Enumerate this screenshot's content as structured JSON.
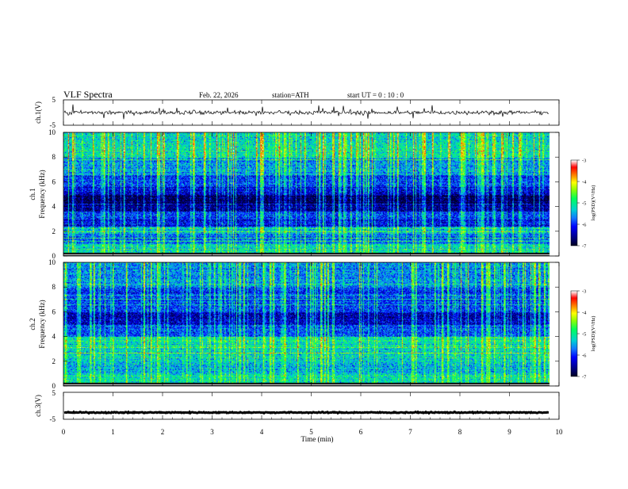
{
  "header": {
    "title": "VLF  Spectra",
    "date": "Feb. 22, 2026",
    "station": "station=ATH",
    "start": "start  UT  =    0  : 10 : 0"
  },
  "colors": {
    "palette": [
      "#000033",
      "#00008f",
      "#0000ff",
      "#1e90ff",
      "#00cccc",
      "#00ff66",
      "#66ff33",
      "#ccff00",
      "#ffff00",
      "#ff8800",
      "#ff0000",
      "#ffffff"
    ],
    "trace": "#000000",
    "axis": "#000000"
  },
  "chart_data": [
    {
      "type": "line",
      "name": "ch1-waveform",
      "ylabel": "ch.1(V)",
      "ylim": [
        -5,
        5
      ],
      "yticks": [
        "5",
        "-5"
      ],
      "xlim": [
        0,
        10
      ],
      "description_values": {
        "baseline": 0,
        "noise_amplitude": 0.8,
        "spike_amplitude": 3
      }
    },
    {
      "type": "heatmap",
      "name": "ch1-spectrogram",
      "ylabel": "ch.1\nFrequency  (kHz)",
      "ylim": [
        0,
        10
      ],
      "yticks": [
        "0",
        "2",
        "4",
        "6",
        "8",
        "10"
      ],
      "xlim": [
        0,
        10
      ],
      "data_end_min": 9.8,
      "colorbar": {
        "label": "log(PSD)(V²/Hz)",
        "ticks": [
          "-3",
          "-4",
          "-5",
          "-6",
          "-7"
        ],
        "range": [
          -7,
          -3
        ]
      },
      "bands": [
        [
          0,
          1.0,
          -5.3
        ],
        [
          1.0,
          1.8,
          -5.8
        ],
        [
          1.8,
          2.4,
          -5.4
        ],
        [
          2.4,
          3.0,
          -6.2
        ],
        [
          3.0,
          3.6,
          -6.0
        ],
        [
          3.6,
          4.2,
          -6.6
        ],
        [
          4.2,
          5.0,
          -6.8
        ],
        [
          5.0,
          5.6,
          -6.3
        ],
        [
          5.6,
          6.6,
          -5.9
        ],
        [
          6.6,
          8.0,
          -5.6
        ],
        [
          8.0,
          10.0,
          -5.2
        ]
      ]
    },
    {
      "type": "heatmap",
      "name": "ch2-spectrogram",
      "ylabel": "ch.2\nFrequency  (kHz)",
      "ylim": [
        0,
        10
      ],
      "yticks": [
        "0",
        "2",
        "4",
        "6",
        "8",
        "10"
      ],
      "xlim": [
        0,
        10
      ],
      "data_end_min": 9.8,
      "colorbar": {
        "label": "log(PSD)(V²/Hz)",
        "ticks": [
          "-3",
          "-4",
          "-5",
          "-6",
          "-7"
        ],
        "range": [
          -7,
          -3
        ]
      },
      "bands": [
        [
          0,
          1.0,
          -5.2
        ],
        [
          1.0,
          2.0,
          -5.5
        ],
        [
          2.0,
          3.2,
          -5.3
        ],
        [
          3.2,
          4.0,
          -5.1
        ],
        [
          4.0,
          5.0,
          -5.9
        ],
        [
          5.0,
          6.0,
          -6.4
        ],
        [
          6.0,
          8.0,
          -6.0
        ],
        [
          8.0,
          10.0,
          -5.6
        ]
      ]
    },
    {
      "type": "line",
      "name": "ch3-waveform",
      "ylabel": "ch.3(V)",
      "ylim": [
        -5,
        5
      ],
      "yticks": [
        "5",
        "-5"
      ],
      "xlim": [
        0,
        10
      ],
      "description_values": {
        "baseline": -2.5,
        "noise_amplitude": 0.2
      }
    }
  ],
  "xaxis": {
    "label": "Time  (min)",
    "ticks": [
      "0",
      "1",
      "2",
      "3",
      "4",
      "5",
      "6",
      "7",
      "8",
      "9",
      "10"
    ],
    "range": [
      0,
      10
    ]
  }
}
